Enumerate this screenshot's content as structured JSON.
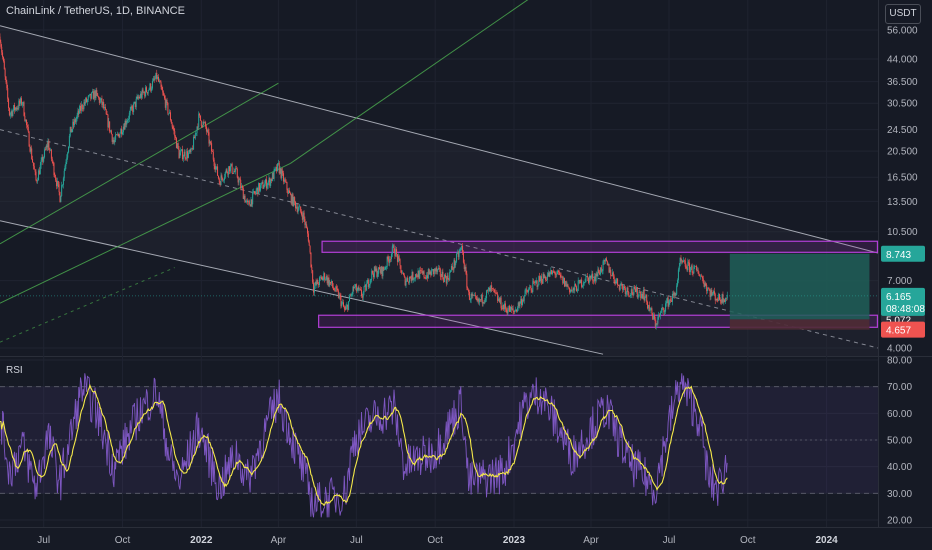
{
  "header": {
    "symbol": "ChainLink / TetherUS",
    "timeframe": "1D",
    "exchange": "BINANCE",
    "title": "ChainLink / TetherUS, 1D, BINANCE",
    "currency_button": "USDT"
  },
  "colors": {
    "background": "#161a25",
    "up_candle": "#26a69a",
    "down_candle": "#ef5350",
    "zone_border": "#b23fd6",
    "channel_line": "#c8ccd6",
    "green_channel": "#4caf50",
    "rsi_line": "#7e57c2",
    "rsi_ma": "#f5e94a",
    "target_box": "#1e5f58",
    "stop_box": "#4e2b34"
  },
  "chart_data": [
    {
      "type": "candlestick",
      "title": "ChainLink / TetherUS, 1D, BINANCE",
      "y_scale": "log",
      "y_ticks": [
        "56.000",
        "44.000",
        "36.500",
        "30.500",
        "24.500",
        "20.500",
        "16.500",
        "13.500",
        "10.500",
        "7.000",
        "4.000"
      ],
      "x_ticks": [
        "Jul",
        "Oct",
        "2022",
        "Apr",
        "Jul",
        "Oct",
        "2023",
        "Apr",
        "Jul",
        "Oct",
        "2024"
      ],
      "x_range": [
        "2021-05-11",
        "2024-03-01"
      ],
      "ylim": [
        3.6,
        63
      ],
      "price_path": [
        [
          "2021-05-11",
          53
        ],
        [
          "2021-05-22",
          28
        ],
        [
          "2021-06-06",
          31
        ],
        [
          "2021-06-22",
          16
        ],
        [
          "2021-07-06",
          22
        ],
        [
          "2021-07-20",
          14
        ],
        [
          "2021-08-01",
          24
        ],
        [
          "2021-08-15",
          30
        ],
        [
          "2021-08-30",
          33
        ],
        [
          "2021-09-08",
          30
        ],
        [
          "2021-09-21",
          22
        ],
        [
          "2021-10-01",
          25
        ],
        [
          "2021-10-20",
          32
        ],
        [
          "2021-11-03",
          35
        ],
        [
          "2021-11-10",
          38
        ],
        [
          "2021-11-26",
          27
        ],
        [
          "2021-12-06",
          20
        ],
        [
          "2021-12-20",
          20
        ],
        [
          "2021-12-29",
          27
        ],
        [
          "2022-01-06",
          25
        ],
        [
          "2022-01-22",
          16
        ],
        [
          "2022-02-03",
          18
        ],
        [
          "2022-02-11",
          17
        ],
        [
          "2022-02-24",
          13
        ],
        [
          "2022-03-08",
          15
        ],
        [
          "2022-03-22",
          16
        ],
        [
          "2022-04-01",
          18
        ],
        [
          "2022-04-15",
          14
        ],
        [
          "2022-04-30",
          12
        ],
        [
          "2022-05-06",
          10
        ],
        [
          "2022-05-12",
          6.6
        ],
        [
          "2022-05-25",
          7.3
        ],
        [
          "2022-06-10",
          6.2
        ],
        [
          "2022-06-18",
          5.4
        ],
        [
          "2022-06-28",
          6.6
        ],
        [
          "2022-07-08",
          6.2
        ],
        [
          "2022-07-20",
          7.5
        ],
        [
          "2022-08-01",
          7.6
        ],
        [
          "2022-08-14",
          9.2
        ],
        [
          "2022-08-26",
          7.0
        ],
        [
          "2022-09-10",
          7.4
        ],
        [
          "2022-09-20",
          7.3
        ],
        [
          "2022-10-01",
          7.6
        ],
        [
          "2022-10-15",
          7.1
        ],
        [
          "2022-11-01",
          9.2
        ],
        [
          "2022-11-09",
          6.2
        ],
        [
          "2022-11-20",
          5.8
        ],
        [
          "2022-12-05",
          6.5
        ],
        [
          "2022-12-20",
          5.6
        ],
        [
          "2023-01-01",
          5.4
        ],
        [
          "2023-01-15",
          6.3
        ],
        [
          "2023-02-01",
          7.1
        ],
        [
          "2023-02-18",
          7.5
        ],
        [
          "2023-03-10",
          6.4
        ],
        [
          "2023-03-25",
          7.1
        ],
        [
          "2023-04-05",
          7.2
        ],
        [
          "2023-04-18",
          8.1
        ],
        [
          "2023-05-01",
          6.9
        ],
        [
          "2023-05-15",
          6.4
        ],
        [
          "2023-06-01",
          6.3
        ],
        [
          "2023-06-15",
          4.9
        ],
        [
          "2023-06-28",
          5.8
        ],
        [
          "2023-07-08",
          6.2
        ],
        [
          "2023-07-14",
          8.1
        ],
        [
          "2023-07-25",
          7.8
        ],
        [
          "2023-08-05",
          7.5
        ],
        [
          "2023-08-17",
          6.4
        ],
        [
          "2023-08-28",
          6.0
        ],
        [
          "2023-09-07",
          6.165
        ]
      ],
      "last_price": "6.165",
      "countdown": "08:48:08",
      "price_tags": [
        {
          "value": "8.743",
          "color": "#26a69a"
        },
        {
          "value": "5.072",
          "color": "#2a2e39"
        },
        {
          "value": "4.657",
          "color": "#ef5350"
        }
      ],
      "support_zone": [
        4.75,
        5.25
      ],
      "resistance_zone": [
        8.85,
        9.7
      ],
      "position": {
        "start": "2023-09-10",
        "end": "2024-02-20",
        "entry": 5.072,
        "target": 8.743,
        "stop": 4.657
      },
      "descending_channel": {
        "upper": [
          [
            "2021-05-11",
            58
          ],
          [
            "2024-03-01",
            8.8
          ]
        ],
        "lower": [
          [
            "2021-05-11",
            11.5
          ],
          [
            "2023-04-15",
            3.8
          ]
        ],
        "mid": [
          [
            "2021-05-11",
            24.5
          ],
          [
            "2024-03-01",
            4.0
          ]
        ]
      },
      "green_channel": {
        "line1": [
          [
            "2021-05-11",
            5.8
          ],
          [
            "2022-04-15",
            18.5
          ]
        ],
        "line2": [
          [
            "2022-04-15",
            18.5
          ],
          [
            "2023-01-20",
            73
          ]
        ],
        "line3": [
          [
            "2021-05-11",
            9.5
          ],
          [
            "2022-04-01",
            36
          ]
        ],
        "line4": [
          [
            "2021-05-11",
            4.2
          ],
          [
            "2021-12-01",
            7.8
          ]
        ]
      }
    },
    {
      "type": "line",
      "title": "RSI",
      "y_ticks": [
        "80.00",
        "70.00",
        "60.00",
        "50.00",
        "40.00",
        "30.00",
        "20.00"
      ],
      "ylim": [
        16,
        80
      ],
      "band": [
        30,
        70
      ],
      "rsi_anchors": [
        [
          "2021-05-11",
          60
        ],
        [
          "2021-05-22",
          38
        ],
        [
          "2021-06-06",
          48
        ],
        [
          "2021-06-22",
          32
        ],
        [
          "2021-07-06",
          52
        ],
        [
          "2021-07-20",
          34
        ],
        [
          "2021-08-15",
          70
        ],
        [
          "2021-08-30",
          62
        ],
        [
          "2021-09-21",
          40
        ],
        [
          "2021-10-20",
          60
        ],
        [
          "2021-11-10",
          68
        ],
        [
          "2021-11-26",
          42
        ],
        [
          "2021-12-06",
          34
        ],
        [
          "2021-12-29",
          55
        ],
        [
          "2022-01-22",
          32
        ],
        [
          "2022-02-11",
          45
        ],
        [
          "2022-02-24",
          35
        ],
        [
          "2022-03-22",
          58
        ],
        [
          "2022-04-01",
          66
        ],
        [
          "2022-04-30",
          38
        ],
        [
          "2022-05-12",
          26
        ],
        [
          "2022-06-18",
          30
        ],
        [
          "2022-06-28",
          50
        ],
        [
          "2022-07-20",
          58
        ],
        [
          "2022-08-14",
          62
        ],
        [
          "2022-08-26",
          40
        ],
        [
          "2022-10-01",
          46
        ],
        [
          "2022-11-01",
          64
        ],
        [
          "2022-11-09",
          34
        ],
        [
          "2022-12-20",
          38
        ],
        [
          "2023-01-15",
          64
        ],
        [
          "2023-02-01",
          68
        ],
        [
          "2023-03-10",
          44
        ],
        [
          "2023-04-18",
          62
        ],
        [
          "2023-05-15",
          42
        ],
        [
          "2023-06-15",
          32
        ],
        [
          "2023-06-28",
          52
        ],
        [
          "2023-07-14",
          72
        ],
        [
          "2023-08-05",
          58
        ],
        [
          "2023-08-17",
          34
        ],
        [
          "2023-08-28",
          32
        ],
        [
          "2023-09-07",
          42
        ]
      ]
    }
  ]
}
